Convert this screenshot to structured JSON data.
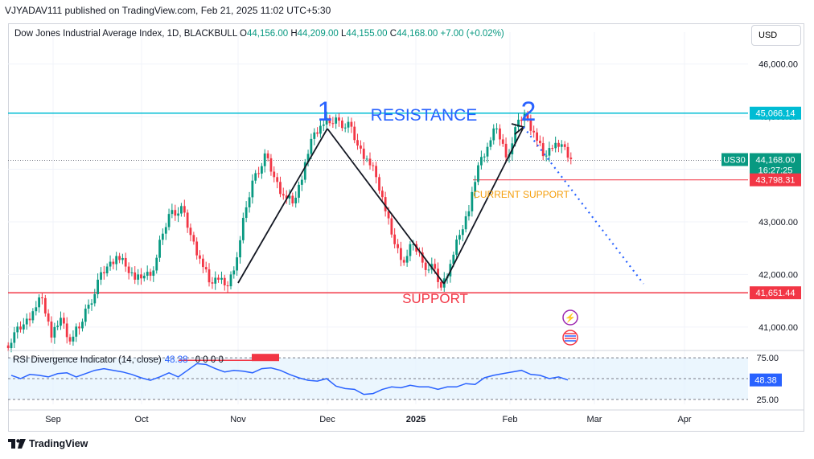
{
  "header": {
    "publisher": "VJYADAV111 published on TradingView.com, Feb 21, 2025 11:02 UTC+5:30"
  },
  "legend": {
    "title": "Dow Jones Industrial Average Index, 1D, BLACKBULL",
    "o_label": "O",
    "o_value": "44,156.00",
    "h_label": "H",
    "h_value": "44,209.00",
    "l_label": "L",
    "l_value": "44,155.00",
    "c_label": "C",
    "c_value": "44,168.00",
    "change": "+7.00 (+0.02%)"
  },
  "currency_button": "USD",
  "rsi": {
    "label": "RSI Divergence Indicator (14, close)",
    "value": "48.38",
    "zeros": "0 0 0 0",
    "axis_labels": [
      "75.00",
      "25.00"
    ],
    "current_tag": "48.38",
    "color": "#2962ff"
  },
  "footer": {
    "brand": "TradingView"
  },
  "annotations": {
    "resistance": "RESISTANCE",
    "support": "SUPPORT",
    "current_support": "CURRENT SUPPORT",
    "peak1": "1",
    "peak2": "2"
  },
  "price_tags": {
    "resistance": "45,066.14",
    "current": "44,168.00",
    "countdown": "16:27:25",
    "current_support": "43,798.31",
    "support": "41,651.44",
    "symbol": "US30"
  },
  "colors": {
    "up": "#089981",
    "down": "#f23645",
    "resistance": "#00bcd4",
    "support": "#f23645",
    "annotation": "#2962ff",
    "current_support_text": "#f59e0b"
  },
  "chart_data": {
    "type": "line",
    "title": "Dow Jones Industrial Average Index, 1D, BLACKBULL",
    "y_ticks": [
      "46,000.00",
      "45,000.00",
      "44,000.00",
      "43,000.00",
      "42,000.00",
      "41,000.00"
    ],
    "x_ticks": [
      "Sep",
      "Oct",
      "Nov",
      "Dec",
      "2025",
      "Feb",
      "Mar",
      "Apr"
    ],
    "ylim": [
      40600,
      46300
    ],
    "levels": {
      "resistance": 45066.14,
      "current_support": 43798.31,
      "support": 41651.44,
      "last": 44168.0
    },
    "series": [
      {
        "values": [
          40800,
          41000,
          41300,
          41600,
          40900,
          41100,
          40700,
          41000,
          41500,
          41800,
          42100,
          42350,
          42200,
          42000,
          41900,
          42050,
          42800,
          43300,
          43200,
          42700,
          42300,
          41900,
          42000,
          41700,
          42300,
          43300,
          44000,
          44200,
          43800,
          43500,
          43400,
          43900,
          44500,
          44800,
          44900,
          45000,
          44800,
          44400,
          44200,
          43900,
          43300,
          42500,
          42200,
          42600,
          42300,
          42100,
          41700,
          42200,
          42800,
          43300,
          44000,
          44400,
          44800,
          44300,
          44700,
          45000,
          44700,
          44300,
          44500,
          44400,
          44168
        ]
      },
      {
        "values": [
          54,
          50,
          55,
          54,
          52,
          56,
          57,
          52,
          56,
          60,
          62,
          60,
          58,
          55,
          51,
          48,
          52,
          57,
          52,
          60,
          68,
          67,
          62,
          58,
          60,
          59,
          57,
          62,
          63,
          60,
          55,
          51,
          48,
          47,
          50,
          41,
          38,
          37,
          31,
          32,
          37,
          40,
          39,
          42,
          40,
          40,
          37,
          40,
          40,
          44,
          43,
          51,
          54,
          56,
          58,
          60,
          55,
          54,
          50,
          52,
          48.38
        ]
      }
    ],
    "projection": {
      "from": 45066.14,
      "to": 41651.44
    }
  }
}
